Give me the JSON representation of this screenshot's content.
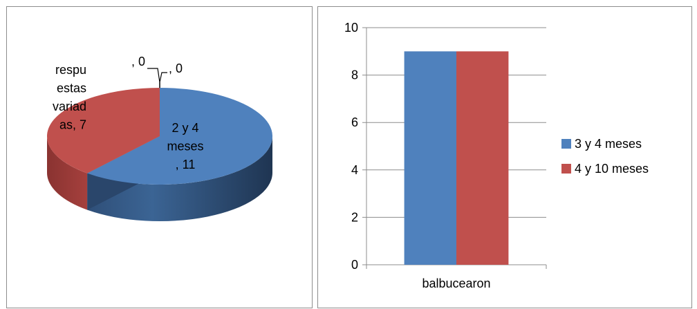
{
  "chart_data": [
    {
      "type": "pie",
      "slices": [
        {
          "label_lines": [
            "2 y 4",
            "meses",
            ", 11"
          ],
          "value": 11,
          "color": "#4f81bd"
        },
        {
          "label_lines": [
            "respu",
            "estas",
            "variad",
            "as, 7"
          ],
          "value": 7,
          "color": "#c0504d"
        },
        {
          "label_lines": [
            ", 0"
          ],
          "value": 0,
          "color": "#9bbb59"
        },
        {
          "label_lines": [
            ", 0"
          ],
          "value": 0,
          "color": "#8064a2"
        }
      ]
    },
    {
      "type": "bar",
      "categories": [
        "balbucearon"
      ],
      "series": [
        {
          "name": "3 y 4 meses",
          "values": [
            9
          ],
          "color": "#4f81bd"
        },
        {
          "name": "4 y 10 meses",
          "values": [
            9
          ],
          "color": "#c0504d"
        }
      ],
      "ylim": [
        0,
        10
      ],
      "yticks": [
        "0",
        "2",
        "4",
        "6",
        "8",
        "10"
      ],
      "legend_position": "right",
      "grid": true
    }
  ]
}
